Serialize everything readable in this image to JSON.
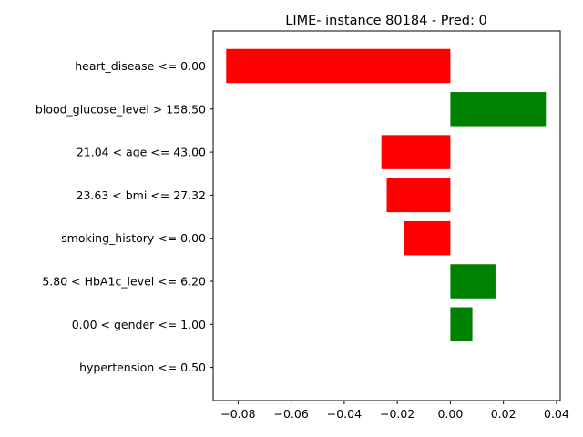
{
  "chart_data": {
    "type": "bar",
    "orientation": "horizontal",
    "title": "LIME- instance 80184 - Pred: 0",
    "xlabel": "",
    "ylabel": "",
    "xlim": [
      -0.0894,
      0.0414
    ],
    "xticks": [
      -0.08,
      -0.06,
      -0.04,
      -0.02,
      0.0,
      0.02,
      0.04
    ],
    "xtick_labels": [
      "−0.08",
      "−0.06",
      "−0.04",
      "−0.02",
      "0.00",
      "0.02",
      "0.04"
    ],
    "categories": [
      "heart_disease <= 0.00",
      "blood_glucose_level > 158.50",
      "21.04 < age <= 43.00",
      "23.63 < bmi <= 27.32",
      "smoking_history <= 0.00",
      "5.80 < HbA1c_level <= 6.20",
      "0.00 < gender <= 1.00",
      "hypertension <= 0.50"
    ],
    "values": [
      -0.0845,
      0.036,
      -0.026,
      -0.024,
      -0.0175,
      0.017,
      0.0083,
      0.0
    ],
    "colors": {
      "positive": "#008000",
      "negative": "#ff0000"
    },
    "grid": false,
    "legend": "none"
  }
}
